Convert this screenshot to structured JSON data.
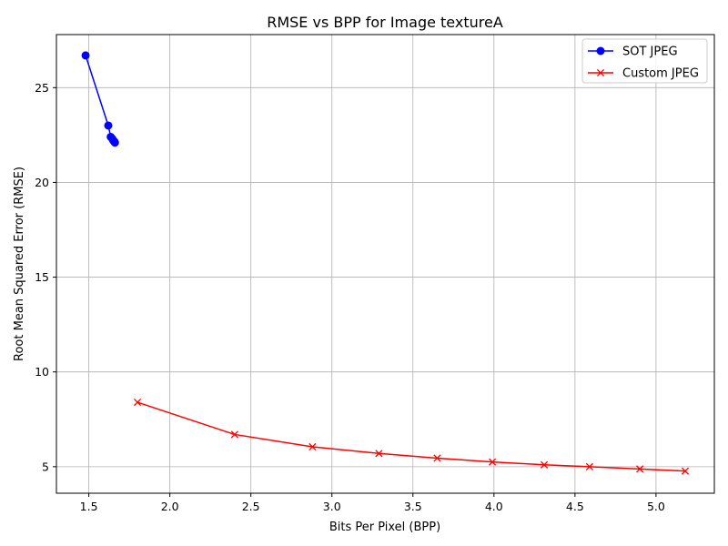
{
  "chart_data": {
    "type": "line",
    "title": "RMSE vs BPP for Image textureA",
    "xlabel": "Bits Per Pixel (BPP)",
    "ylabel": "Root Mean Squared Error (RMSE)",
    "xlim": [
      1.3,
      5.36
    ],
    "ylim": [
      3.6,
      27.8
    ],
    "xticks": [
      1.5,
      2.0,
      2.5,
      3.0,
      3.5,
      4.0,
      4.5,
      5.0
    ],
    "xtick_labels": [
      "1.5",
      "2.0",
      "2.5",
      "3.0",
      "3.5",
      "4.0",
      "4.5",
      "5.0"
    ],
    "yticks": [
      5,
      10,
      15,
      20,
      25
    ],
    "ytick_labels": [
      "5",
      "10",
      "15",
      "20",
      "25"
    ],
    "grid": true,
    "legend_position": "top-right",
    "series": [
      {
        "name": "SOT JPEG",
        "color": "#0000ff",
        "marker": "circle",
        "x": [
          1.48,
          1.62,
          1.635,
          1.645,
          1.652,
          1.658,
          1.661
        ],
        "y": [
          26.7,
          23.0,
          22.4,
          22.3,
          22.2,
          22.15,
          22.1
        ]
      },
      {
        "name": "Custom JPEG",
        "color": "#ff0000",
        "marker": "x",
        "x": [
          1.8,
          2.4,
          2.88,
          3.29,
          3.65,
          3.99,
          4.31,
          4.59,
          4.9,
          5.18
        ],
        "y": [
          8.4,
          6.7,
          6.05,
          5.7,
          5.45,
          5.25,
          5.1,
          5.0,
          4.88,
          4.77
        ]
      }
    ]
  }
}
